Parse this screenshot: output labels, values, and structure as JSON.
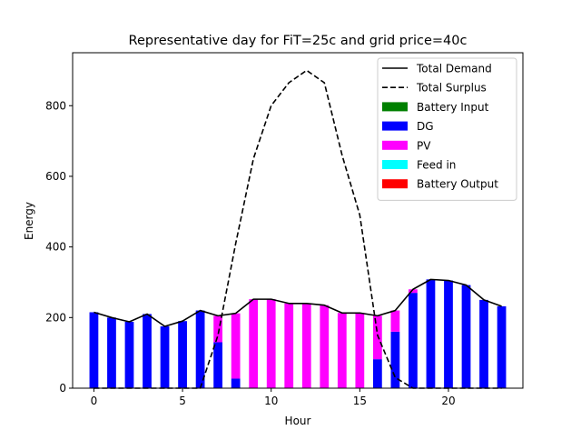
{
  "chart_data": {
    "type": "bar",
    "title": "Representative day for FiT=25c and grid price=40c",
    "xlabel": "Hour",
    "ylabel": "Energy",
    "xlim": [
      -1.2,
      24.2
    ],
    "ylim": [
      0,
      950
    ],
    "xticks": [
      0,
      5,
      10,
      15,
      20
    ],
    "yticks": [
      0,
      200,
      400,
      600,
      800
    ],
    "legend_position": "top-right",
    "hours": [
      0,
      1,
      2,
      3,
      4,
      5,
      6,
      7,
      8,
      9,
      10,
      11,
      12,
      13,
      14,
      15,
      16,
      17,
      18,
      19,
      20,
      21,
      22,
      23
    ],
    "lines": [
      {
        "name": "Total Demand",
        "style": "solid",
        "color": "#000000",
        "values": [
          215,
          200,
          188,
          210,
          175,
          190,
          220,
          205,
          212,
          252,
          252,
          240,
          240,
          235,
          213,
          213,
          205,
          220,
          280,
          308,
          305,
          292,
          250,
          232
        ]
      },
      {
        "name": "Total Surplus",
        "style": "dashed",
        "color": "#000000",
        "values": [
          0,
          0,
          0,
          0,
          0,
          0,
          0,
          150,
          410,
          650,
          800,
          865,
          900,
          865,
          660,
          490,
          150,
          30,
          0,
          0,
          0,
          0,
          0,
          0
        ]
      }
    ],
    "bar_series": [
      {
        "name": "Battery Input",
        "color": "#008000",
        "values": [
          0,
          0,
          0,
          0,
          0,
          0,
          0,
          0,
          0,
          0,
          0,
          0,
          0,
          0,
          0,
          0,
          0,
          0,
          0,
          0,
          0,
          0,
          0,
          0
        ]
      },
      {
        "name": "DG",
        "color": "#0000ff",
        "values": [
          215,
          200,
          188,
          210,
          175,
          190,
          220,
          130,
          27,
          0,
          0,
          0,
          0,
          0,
          0,
          0,
          82,
          160,
          270,
          308,
          305,
          292,
          250,
          232
        ]
      },
      {
        "name": "PV",
        "color": "#ff00ff",
        "values": [
          0,
          0,
          0,
          0,
          0,
          0,
          0,
          75,
          185,
          252,
          252,
          240,
          240,
          235,
          213,
          213,
          123,
          60,
          10,
          0,
          0,
          0,
          0,
          0
        ]
      },
      {
        "name": "Feed in",
        "color": "#00ffff",
        "values": [
          0,
          0,
          0,
          0,
          0,
          0,
          0,
          0,
          0,
          0,
          0,
          0,
          0,
          0,
          0,
          0,
          0,
          0,
          0,
          0,
          0,
          0,
          0,
          0
        ]
      },
      {
        "name": "Battery Output",
        "color": "#ff0000",
        "values": [
          0,
          0,
          0,
          0,
          0,
          0,
          0,
          0,
          0,
          0,
          0,
          0,
          0,
          0,
          0,
          0,
          0,
          0,
          0,
          0,
          0,
          0,
          0,
          0
        ]
      }
    ]
  }
}
